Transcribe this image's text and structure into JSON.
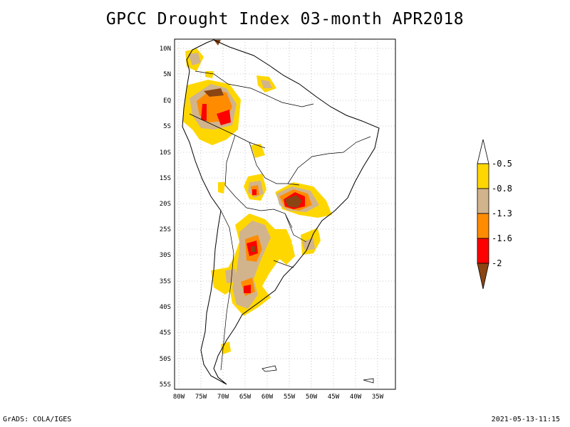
{
  "title": "GPCC Drought Index 03-month APR2018",
  "footer": {
    "left": "GrADS: COLA/IGES",
    "right": "2021-05-13-11:15"
  },
  "lat_labels": [
    "10N",
    "5N",
    "EQ",
    "5S",
    "10S",
    "15S",
    "20S",
    "25S",
    "30S",
    "35S",
    "40S",
    "45S",
    "50S",
    "55S"
  ],
  "lon_labels": [
    "80W",
    "75W",
    "70W",
    "65W",
    "60W",
    "55W",
    "50W",
    "45W",
    "40W",
    "35W"
  ],
  "colorbar": {
    "labels": [
      "-0.5",
      "-0.8",
      "-1.3",
      "-1.6",
      "-2"
    ],
    "colors": {
      "white": "#ffffff",
      "yellow": "#ffd700",
      "tan": "#d2b48c",
      "orange": "#ff8c00",
      "red": "#ff0000",
      "brown": "#8b4513"
    }
  }
}
